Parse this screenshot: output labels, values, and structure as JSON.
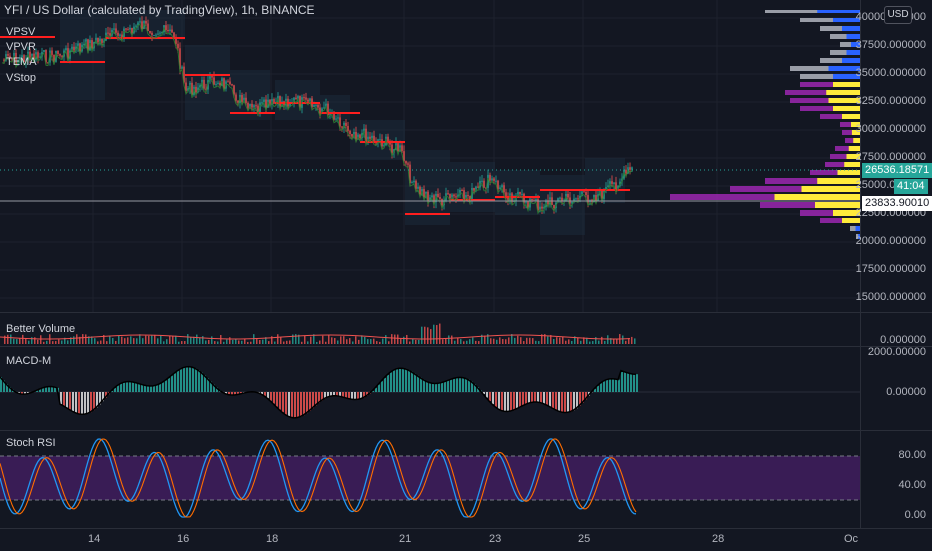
{
  "header": {
    "title": "YFI / US Dollar (calculated by TradingView), 1h, BINANCE",
    "currency_button": "USD"
  },
  "legend": [
    "VPSV",
    "VPVR",
    "TEMA",
    "VStop"
  ],
  "price_scale": {
    "ticks": [
      "40000.000000",
      "37500.000000",
      "35000.000000",
      "32500.000000",
      "30000.000000",
      "27500.000000",
      "25000.000000",
      "22500.000000",
      "20000.000000",
      "17500.000000",
      "15000.000000"
    ],
    "last_price": "26536.18571",
    "countdown": "41:04",
    "crosshair_price": "23833.90010",
    "last_price_color": "#26a69a"
  },
  "volume_pane": {
    "title": "Better Volume",
    "ticks": [
      "0.000000"
    ]
  },
  "macd_pane": {
    "title": "MACD-M",
    "ticks": [
      "2000.00000",
      "0.00000"
    ]
  },
  "rsi_pane": {
    "title": "Stoch RSI",
    "ticks": [
      "80.00",
      "40.00",
      "0.00"
    ]
  },
  "time_axis": {
    "labels": [
      "14",
      "16",
      "18",
      "21",
      "23",
      "25",
      "28",
      "Oc"
    ]
  },
  "colors": {
    "up": "#26a69a",
    "down": "#ef5350",
    "poc": "#ff1e1e",
    "vp_blue": "#2962ff",
    "vp_gray": "#b2b5be",
    "vp_yellow": "#ffeb3b",
    "vp_purple": "#9c27b0",
    "rsi_band": "#4a1f6b"
  }
}
